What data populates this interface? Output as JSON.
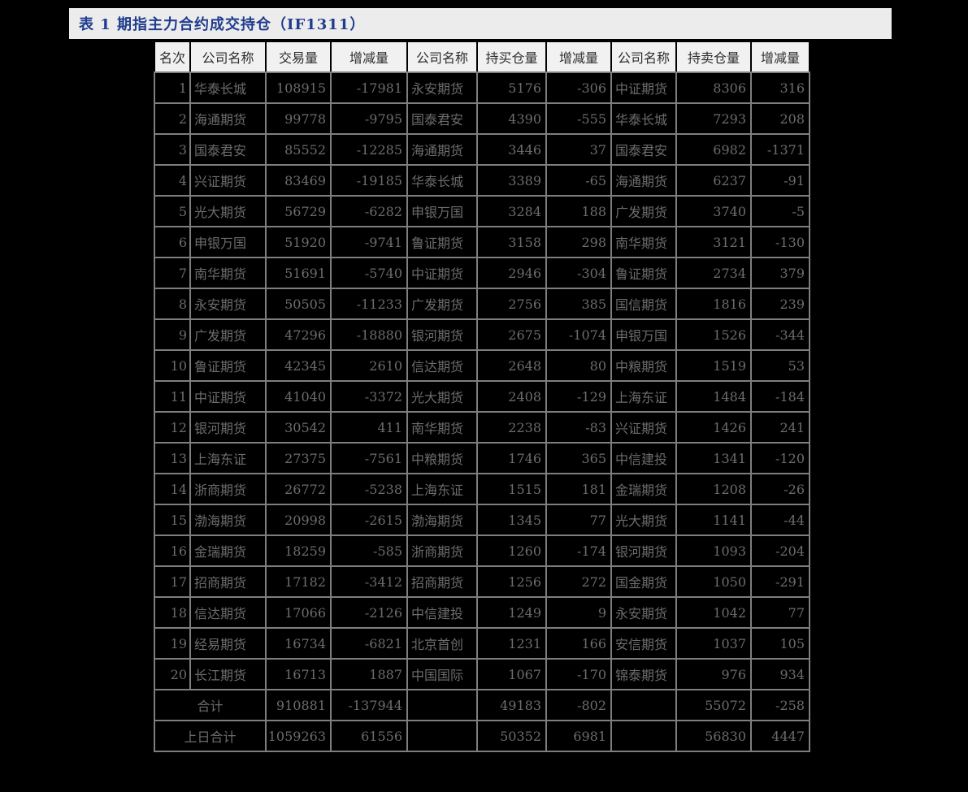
{
  "title": "表 1 期指主力合约成交持仓（IF1311）",
  "colors": {
    "page_background": "#000000",
    "title_bar_background": "#ececec",
    "title_text": "#1f3c8d",
    "header_background": "#f1f1f1",
    "header_text": "#2d2d2d",
    "cell_text": "#6c6c6c",
    "grid_line": "#7e7e7e"
  },
  "table": {
    "headers": [
      "名次",
      "公司名称",
      "交易量",
      "增减量",
      "公司名称",
      "持买仓量",
      "增减量",
      "公司名称",
      "持卖仓量",
      "增减量"
    ],
    "rows": [
      [
        "1",
        "华泰长城",
        "108915",
        "-17981",
        "永安期货",
        "5176",
        "-306",
        "中证期货",
        "8306",
        "316"
      ],
      [
        "2",
        "海通期货",
        "99778",
        "-9795",
        "国泰君安",
        "4390",
        "-555",
        "华泰长城",
        "7293",
        "208"
      ],
      [
        "3",
        "国泰君安",
        "85552",
        "-12285",
        "海通期货",
        "3446",
        "37",
        "国泰君安",
        "6982",
        "-1371"
      ],
      [
        "4",
        "兴证期货",
        "83469",
        "-19185",
        "华泰长城",
        "3389",
        "-65",
        "海通期货",
        "6237",
        "-91"
      ],
      [
        "5",
        "光大期货",
        "56729",
        "-6282",
        "申银万国",
        "3284",
        "188",
        "广发期货",
        "3740",
        "-5"
      ],
      [
        "6",
        "申银万国",
        "51920",
        "-9741",
        "鲁证期货",
        "3158",
        "298",
        "南华期货",
        "3121",
        "-130"
      ],
      [
        "7",
        "南华期货",
        "51691",
        "-5740",
        "中证期货",
        "2946",
        "-304",
        "鲁证期货",
        "2734",
        "379"
      ],
      [
        "8",
        "永安期货",
        "50505",
        "-11233",
        "广发期货",
        "2756",
        "385",
        "国信期货",
        "1816",
        "239"
      ],
      [
        "9",
        "广发期货",
        "47296",
        "-18880",
        "银河期货",
        "2675",
        "-1074",
        "申银万国",
        "1526",
        "-344"
      ],
      [
        "10",
        "鲁证期货",
        "42345",
        "2610",
        "信达期货",
        "2648",
        "80",
        "中粮期货",
        "1519",
        "53"
      ],
      [
        "11",
        "中证期货",
        "41040",
        "-3372",
        "光大期货",
        "2408",
        "-129",
        "上海东证",
        "1484",
        "-184"
      ],
      [
        "12",
        "银河期货",
        "30542",
        "411",
        "南华期货",
        "2238",
        "-83",
        "兴证期货",
        "1426",
        "241"
      ],
      [
        "13",
        "上海东证",
        "27375",
        "-7561",
        "中粮期货",
        "1746",
        "365",
        "中信建投",
        "1341",
        "-120"
      ],
      [
        "14",
        "浙商期货",
        "26772",
        "-5238",
        "上海东证",
        "1515",
        "181",
        "金瑞期货",
        "1208",
        "-26"
      ],
      [
        "15",
        "渤海期货",
        "20998",
        "-2615",
        "渤海期货",
        "1345",
        "77",
        "光大期货",
        "1141",
        "-44"
      ],
      [
        "16",
        "金瑞期货",
        "18259",
        "-585",
        "浙商期货",
        "1260",
        "-174",
        "银河期货",
        "1093",
        "-204"
      ],
      [
        "17",
        "招商期货",
        "17182",
        "-3412",
        "招商期货",
        "1256",
        "272",
        "国金期货",
        "1050",
        "-291"
      ],
      [
        "18",
        "信达期货",
        "17066",
        "-2126",
        "中信建投",
        "1249",
        "9",
        "永安期货",
        "1042",
        "77"
      ],
      [
        "19",
        "经易期货",
        "16734",
        "-6821",
        "北京首创",
        "1231",
        "166",
        "安信期货",
        "1037",
        "105"
      ],
      [
        "20",
        "长江期货",
        "16713",
        "1887",
        "中国国际",
        "1067",
        "-170",
        "锦泰期货",
        "976",
        "934"
      ]
    ],
    "totals": [
      {
        "label": "合计",
        "values": [
          "910881",
          "-137944",
          "",
          "49183",
          "-802",
          "",
          "55072",
          "-258"
        ]
      },
      {
        "label": "上日合计",
        "values": [
          "1059263",
          "61556",
          "",
          "50352",
          "6981",
          "",
          "56830",
          "4447"
        ]
      }
    ]
  }
}
